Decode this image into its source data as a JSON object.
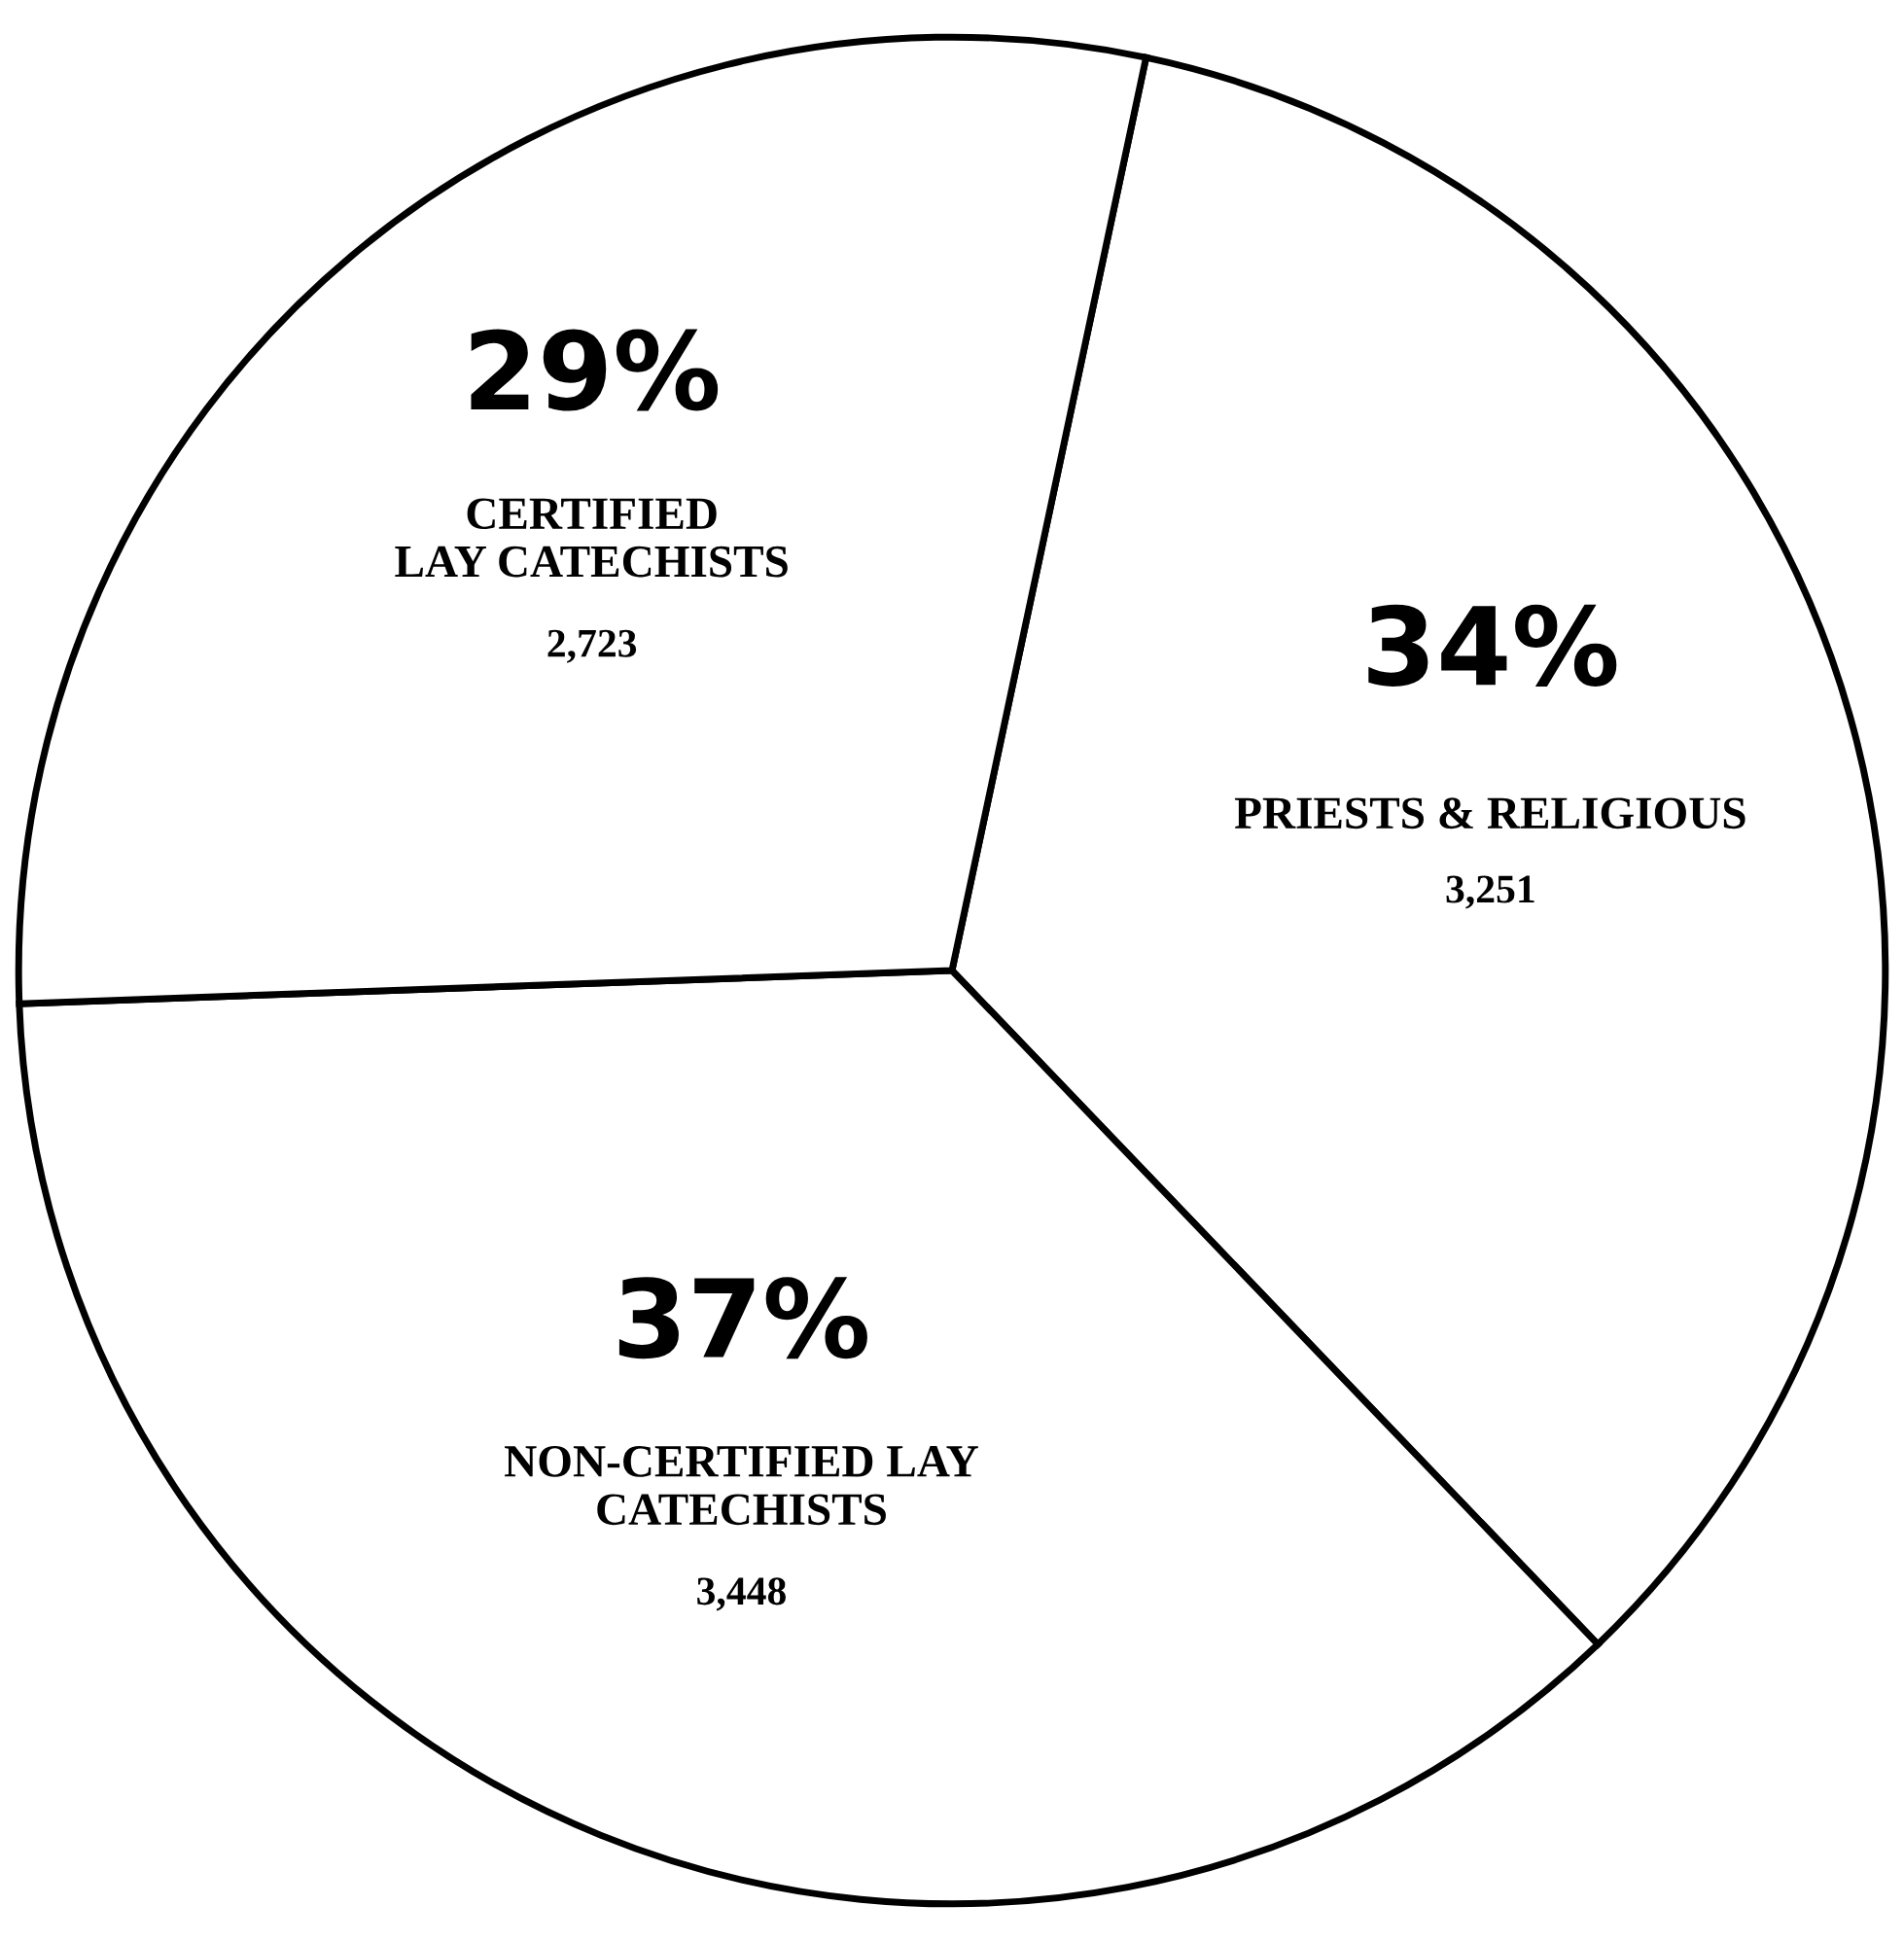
{
  "chart_data": {
    "type": "pie",
    "categories": [
      "PRIESTS & RELIGIOUS",
      "NON-CERTIFIED LAY\nCATECHISTS",
      "CERTIFIED\nLAY CATECHISTS"
    ],
    "values": [
      3251,
      3448,
      2723
    ],
    "value_labels": [
      "3,251",
      "3,448",
      "2,723"
    ],
    "annotations": [
      "34%",
      "37%",
      "29%"
    ],
    "colors": [
      "#ffffff",
      "#ffffff",
      "#ffffff"
    ],
    "legend": false
  }
}
